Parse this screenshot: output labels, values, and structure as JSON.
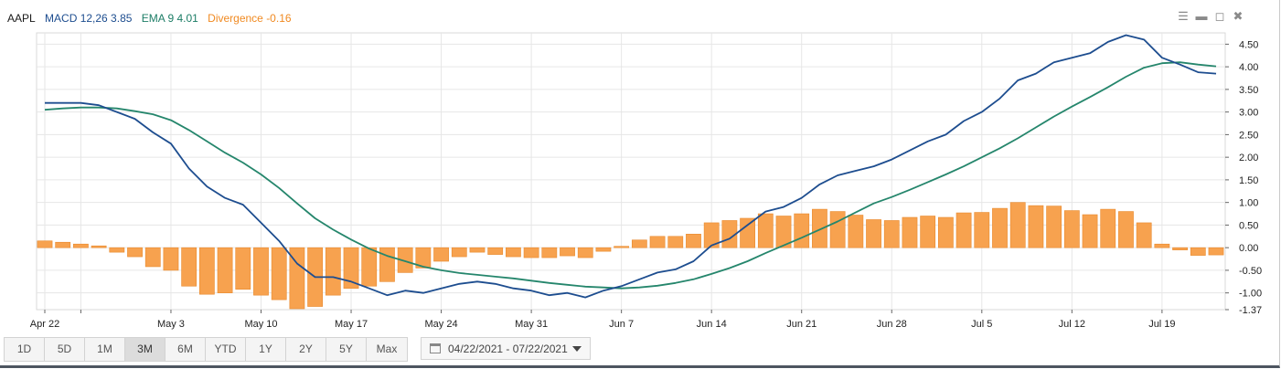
{
  "legend": {
    "symbol": "AAPL",
    "macd": "MACD 12,26 3.85",
    "ema": "EMA 9 4.01",
    "divergence": "Divergence -0.16"
  },
  "window_controls": [
    "menu-icon",
    "minimize-icon",
    "maximize-icon",
    "close-icon"
  ],
  "colors": {
    "macd": "#1d4d8f",
    "ema": "#25866c",
    "divergence": "#f7a24f",
    "divergence_edge": "#e8892c",
    "grid": "#e6e6e6"
  },
  "range_buttons": [
    "1D",
    "5D",
    "1M",
    "3M",
    "6M",
    "YTD",
    "1Y",
    "2Y",
    "5Y",
    "Max"
  ],
  "active_range": "3M",
  "date_range": "04/22/2021 - 07/22/2021",
  "chart_data": {
    "type": "line",
    "x_tick_labels": [
      "Apr 22",
      "May 3",
      "May 10",
      "May 17",
      "May 24",
      "May 31",
      "Jun 7",
      "Jun 14",
      "Jun 21",
      "Jun 28",
      "Jul 5",
      "Jul 12",
      "Jul 19"
    ],
    "y_tick_labels": [
      "4.50",
      "4.00",
      "3.50",
      "3.00",
      "2.50",
      "2.00",
      "1.50",
      "1.00",
      "0.50",
      "0.00",
      "-0.50",
      "-1.00",
      "-1.37"
    ],
    "ylim": [
      -1.37,
      4.75
    ],
    "grid": true,
    "series": [
      {
        "name": "MACD 12,26",
        "type": "line",
        "values": [
          3.2,
          3.2,
          3.2,
          3.15,
          3.0,
          2.85,
          2.55,
          2.3,
          1.75,
          1.35,
          1.1,
          0.95,
          0.55,
          0.15,
          -0.35,
          -0.65,
          -0.65,
          -0.75,
          -0.9,
          -1.05,
          -0.95,
          -1.0,
          -0.9,
          -0.8,
          -0.75,
          -0.8,
          -0.9,
          -0.95,
          -1.05,
          -1.0,
          -1.1,
          -0.95,
          -0.85,
          -0.7,
          -0.55,
          -0.48,
          -0.3,
          0.05,
          0.2,
          0.5,
          0.8,
          0.9,
          1.1,
          1.4,
          1.6,
          1.7,
          1.8,
          1.95,
          2.15,
          2.35,
          2.5,
          2.8,
          3.0,
          3.3,
          3.7,
          3.85,
          4.1,
          4.2,
          4.3,
          4.55,
          4.7,
          4.6,
          4.2,
          4.05,
          3.88,
          3.85
        ]
      },
      {
        "name": "EMA 9",
        "type": "line",
        "values": [
          3.05,
          3.08,
          3.1,
          3.1,
          3.08,
          3.02,
          2.95,
          2.82,
          2.6,
          2.35,
          2.1,
          1.88,
          1.62,
          1.32,
          0.98,
          0.65,
          0.4,
          0.18,
          -0.02,
          -0.18,
          -0.3,
          -0.42,
          -0.5,
          -0.56,
          -0.6,
          -0.64,
          -0.68,
          -0.73,
          -0.78,
          -0.82,
          -0.86,
          -0.88,
          -0.9,
          -0.88,
          -0.84,
          -0.78,
          -0.7,
          -0.58,
          -0.45,
          -0.3,
          -0.12,
          0.05,
          0.22,
          0.4,
          0.58,
          0.78,
          0.98,
          1.12,
          1.28,
          1.45,
          1.62,
          1.8,
          2.0,
          2.2,
          2.42,
          2.66,
          2.9,
          3.12,
          3.33,
          3.55,
          3.78,
          3.98,
          4.08,
          4.1,
          4.05,
          4.01
        ]
      },
      {
        "name": "Divergence",
        "type": "bar",
        "values": [
          0.15,
          0.12,
          0.08,
          0.04,
          -0.1,
          -0.2,
          -0.42,
          -0.5,
          -0.85,
          -1.03,
          -1.0,
          -0.92,
          -1.05,
          -1.15,
          -1.35,
          -1.3,
          -1.05,
          -0.9,
          -0.85,
          -0.75,
          -0.55,
          -0.45,
          -0.3,
          -0.2,
          -0.1,
          -0.15,
          -0.2,
          -0.22,
          -0.22,
          -0.18,
          -0.22,
          -0.08,
          0.03,
          0.17,
          0.25,
          0.25,
          0.3,
          0.55,
          0.6,
          0.65,
          0.75,
          0.7,
          0.75,
          0.85,
          0.8,
          0.72,
          0.62,
          0.6,
          0.67,
          0.7,
          0.67,
          0.77,
          0.78,
          0.87,
          1.0,
          0.93,
          0.92,
          0.82,
          0.73,
          0.85,
          0.8,
          0.55,
          0.08,
          -0.05,
          -0.17,
          -0.16
        ]
      }
    ]
  }
}
